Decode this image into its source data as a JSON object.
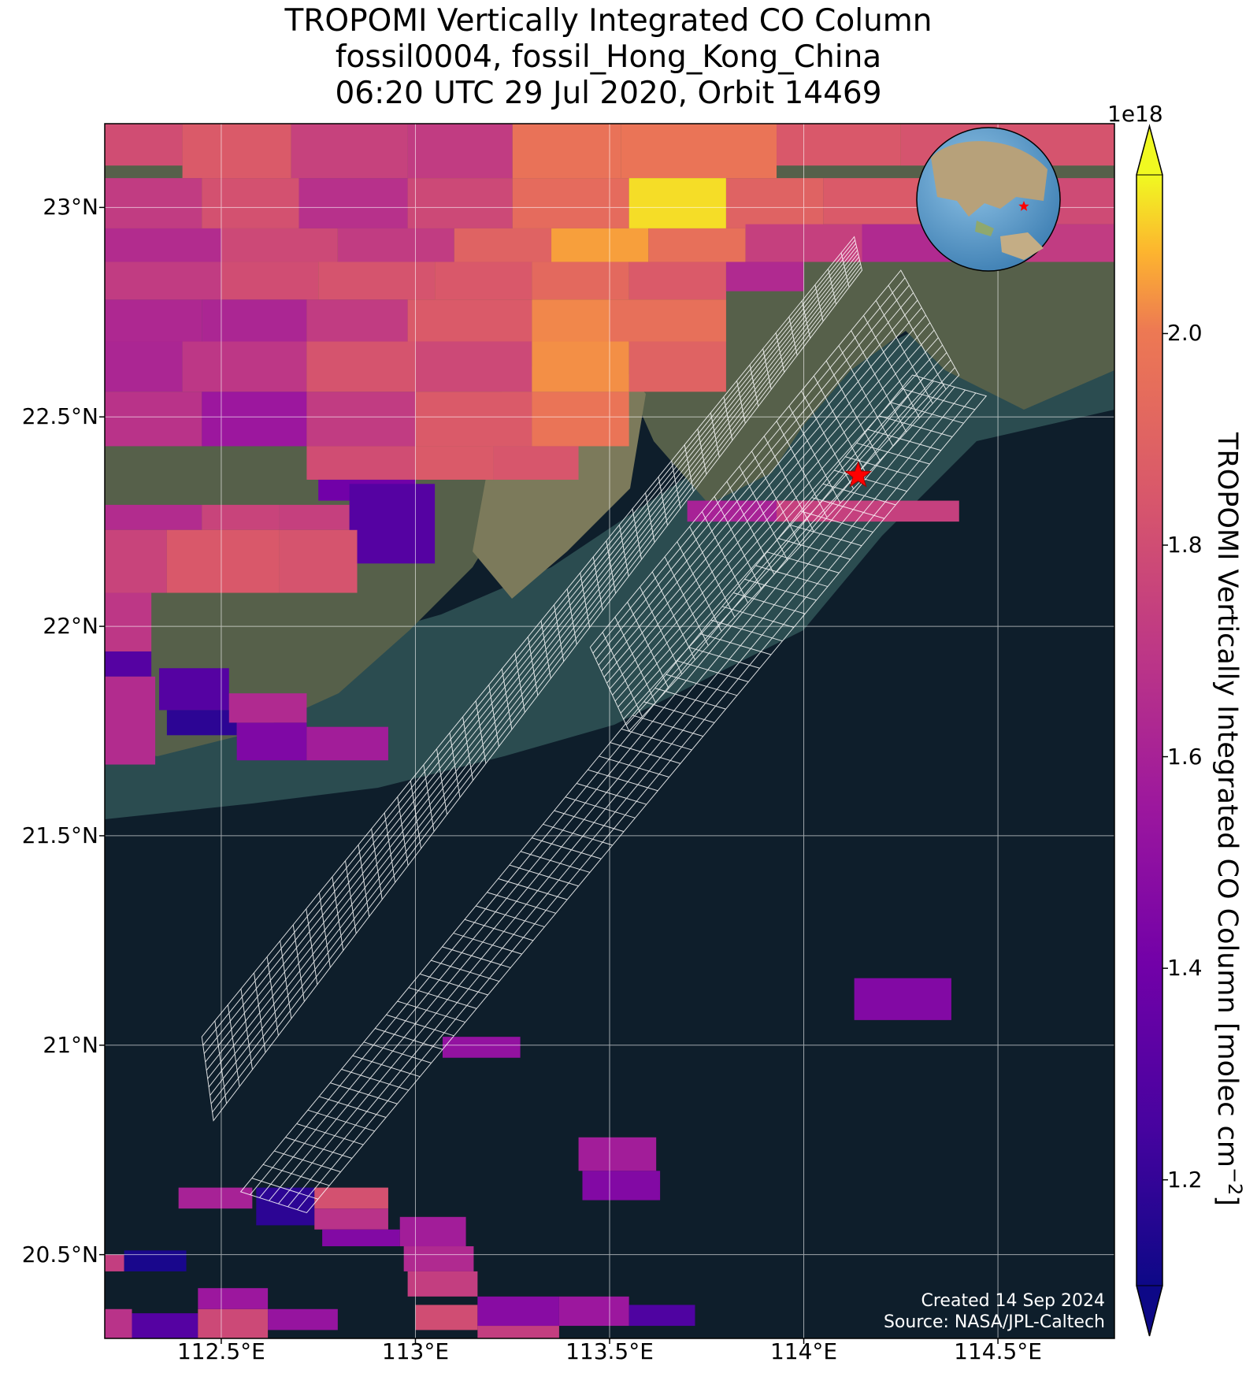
{
  "title": {
    "line1": "TROPOMI Vertically Integrated CO Column",
    "line2": "fossil0004, fossil_Hong_Kong_China",
    "line3": "06:20 UTC 29 Jul 2020, Orbit 14469"
  },
  "axes": {
    "lat_ticks": [
      "23°N",
      "22.5°N",
      "22°N",
      "21.5°N",
      "21°N",
      "20.5°N"
    ],
    "lon_ticks": [
      "112.5°E",
      "113°E",
      "113.5°E",
      "114°E",
      "114.5°E"
    ],
    "lon_range": [
      112.2,
      114.8
    ],
    "lat_range": [
      20.3,
      23.2
    ]
  },
  "colorbar": {
    "exponent": "1e18",
    "ticks": [
      "1.2",
      "1.4",
      "1.6",
      "1.8",
      "2.0"
    ],
    "label": "TROPOMI Vertically Integrated CO Column [molec cm",
    "label_sup": "−2",
    "label_end": "]",
    "range": [
      1.1,
      2.15
    ],
    "colormap": "plasma"
  },
  "site_marker": {
    "lon": 114.14,
    "lat": 22.36,
    "color": "#ff0000",
    "icon": "star-icon"
  },
  "inset": {
    "type": "globe",
    "marker_color": "#ff0000"
  },
  "credits": {
    "created": "Created 14 Sep 2024",
    "source": "Source: NASA/JPL-Caltech"
  },
  "chart_data": {
    "type": "heatmap",
    "x_unit": "degrees East",
    "y_unit": "degrees North",
    "cells": [
      {
        "lon": [
          112.2,
          112.4
        ],
        "lat": [
          23.1,
          23.2
        ],
        "v": 1.8
      },
      {
        "lon": [
          112.4,
          112.68
        ],
        "lat": [
          23.07,
          23.2
        ],
        "v": 1.86
      },
      {
        "lon": [
          112.68,
          112.98
        ],
        "lat": [
          23.07,
          23.2
        ],
        "v": 1.75
      },
      {
        "lon": [
          112.98,
          113.25
        ],
        "lat": [
          23.07,
          23.2
        ],
        "v": 1.72
      },
      {
        "lon": [
          113.25,
          113.53
        ],
        "lat": [
          23.07,
          23.2
        ],
        "v": 1.97
      },
      {
        "lon": [
          113.53,
          113.93
        ],
        "lat": [
          23.07,
          23.2
        ],
        "v": 1.98
      },
      {
        "lon": [
          113.93,
          114.25
        ],
        "lat": [
          23.1,
          23.2
        ],
        "v": 1.85
      },
      {
        "lon": [
          114.25,
          114.8
        ],
        "lat": [
          23.1,
          23.2
        ],
        "v": 1.83
      },
      {
        "lon": [
          112.2,
          112.45
        ],
        "lat": [
          22.95,
          23.07
        ],
        "v": 1.72
      },
      {
        "lon": [
          112.45,
          112.7
        ],
        "lat": [
          22.95,
          23.07
        ],
        "v": 1.82
      },
      {
        "lon": [
          112.7,
          112.98
        ],
        "lat": [
          22.95,
          23.07
        ],
        "v": 1.67
      },
      {
        "lon": [
          112.98,
          113.25
        ],
        "lat": [
          22.95,
          23.07
        ],
        "v": 1.78
      },
      {
        "lon": [
          113.25,
          113.55
        ],
        "lat": [
          22.95,
          23.07
        ],
        "v": 1.94
      },
      {
        "lon": [
          113.55,
          113.8
        ],
        "lat": [
          22.95,
          23.07
        ],
        "v": 2.12
      },
      {
        "lon": [
          113.8,
          114.05
        ],
        "lat": [
          22.95,
          23.07
        ],
        "v": 1.9
      },
      {
        "lon": [
          114.05,
          114.35
        ],
        "lat": [
          22.96,
          23.07
        ],
        "v": 1.86
      },
      {
        "lon": [
          114.35,
          114.8
        ],
        "lat": [
          22.96,
          23.07
        ],
        "v": 1.79
      },
      {
        "lon": [
          112.2,
          112.5
        ],
        "lat": [
          22.87,
          22.95
        ],
        "v": 1.65
      },
      {
        "lon": [
          112.5,
          112.8
        ],
        "lat": [
          22.87,
          22.95
        ],
        "v": 1.78
      },
      {
        "lon": [
          112.8,
          113.1
        ],
        "lat": [
          22.87,
          22.95
        ],
        "v": 1.72
      },
      {
        "lon": [
          113.1,
          113.35
        ],
        "lat": [
          22.87,
          22.95
        ],
        "v": 1.9
      },
      {
        "lon": [
          113.35,
          113.6
        ],
        "lat": [
          22.87,
          22.95
        ],
        "v": 2.05
      },
      {
        "lon": [
          113.6,
          113.85
        ],
        "lat": [
          22.87,
          22.95
        ],
        "v": 1.96
      },
      {
        "lon": [
          113.85,
          114.15
        ],
        "lat": [
          22.87,
          22.96
        ],
        "v": 1.74
      },
      {
        "lon": [
          114.15,
          114.5
        ],
        "lat": [
          22.87,
          22.96
        ],
        "v": 1.64
      },
      {
        "lon": [
          114.5,
          114.8
        ],
        "lat": [
          22.87,
          22.96
        ],
        "v": 1.72
      },
      {
        "lon": [
          112.2,
          112.5
        ],
        "lat": [
          22.78,
          22.87
        ],
        "v": 1.72
      },
      {
        "lon": [
          112.5,
          112.75
        ],
        "lat": [
          22.78,
          22.87
        ],
        "v": 1.8
      },
      {
        "lon": [
          112.75,
          113.05
        ],
        "lat": [
          22.78,
          22.87
        ],
        "v": 1.83
      },
      {
        "lon": [
          113.05,
          113.3
        ],
        "lat": [
          22.78,
          22.87
        ],
        "v": 1.85
      },
      {
        "lon": [
          113.3,
          113.55
        ],
        "lat": [
          22.78,
          22.87
        ],
        "v": 1.93
      },
      {
        "lon": [
          113.55,
          113.8
        ],
        "lat": [
          22.78,
          22.87
        ],
        "v": 1.86
      },
      {
        "lon": [
          113.8,
          114.0
        ],
        "lat": [
          22.8,
          22.87
        ],
        "v": 1.64
      },
      {
        "lon": [
          112.2,
          112.45
        ],
        "lat": [
          22.68,
          22.78
        ],
        "v": 1.63
      },
      {
        "lon": [
          112.45,
          112.72
        ],
        "lat": [
          22.68,
          22.78
        ],
        "v": 1.62
      },
      {
        "lon": [
          112.72,
          112.98
        ],
        "lat": [
          22.68,
          22.78
        ],
        "v": 1.72
      },
      {
        "lon": [
          112.98,
          113.3
        ],
        "lat": [
          22.68,
          22.78
        ],
        "v": 1.86
      },
      {
        "lon": [
          113.3,
          113.5
        ],
        "lat": [
          22.68,
          22.78
        ],
        "v": 2.02
      },
      {
        "lon": [
          113.5,
          113.8
        ],
        "lat": [
          22.68,
          22.78
        ],
        "v": 1.96
      },
      {
        "lon": [
          112.2,
          112.4
        ],
        "lat": [
          22.56,
          22.68
        ],
        "v": 1.62
      },
      {
        "lon": [
          112.4,
          112.72
        ],
        "lat": [
          22.56,
          22.68
        ],
        "v": 1.7
      },
      {
        "lon": [
          112.72,
          113.0
        ],
        "lat": [
          22.56,
          22.68
        ],
        "v": 1.83
      },
      {
        "lon": [
          113.0,
          113.3
        ],
        "lat": [
          22.56,
          22.68
        ],
        "v": 1.78
      },
      {
        "lon": [
          113.3,
          113.55
        ],
        "lat": [
          22.56,
          22.68
        ],
        "v": 2.03
      },
      {
        "lon": [
          113.55,
          113.8
        ],
        "lat": [
          22.56,
          22.68
        ],
        "v": 1.9
      },
      {
        "lon": [
          112.2,
          112.45
        ],
        "lat": [
          22.43,
          22.56
        ],
        "v": 1.68
      },
      {
        "lon": [
          112.45,
          112.72
        ],
        "lat": [
          22.43,
          22.56
        ],
        "v": 1.55
      },
      {
        "lon": [
          112.72,
          113.0
        ],
        "lat": [
          22.43,
          22.56
        ],
        "v": 1.72
      },
      {
        "lon": [
          113.0,
          113.3
        ],
        "lat": [
          22.43,
          22.56
        ],
        "v": 1.86
      },
      {
        "lon": [
          113.3,
          113.55
        ],
        "lat": [
          22.43,
          22.56
        ],
        "v": 1.98
      },
      {
        "lon": [
          112.72,
          113.0
        ],
        "lat": [
          22.35,
          22.43
        ],
        "v": 1.8
      },
      {
        "lon": [
          113.0,
          113.2
        ],
        "lat": [
          22.35,
          22.43
        ],
        "v": 1.86
      },
      {
        "lon": [
          113.2,
          113.42
        ],
        "lat": [
          22.35,
          22.43
        ],
        "v": 1.84
      },
      {
        "lon": [
          112.75,
          113.0
        ],
        "lat": [
          22.3,
          22.35
        ],
        "v": 1.4
      },
      {
        "lon": [
          112.2,
          112.45
        ],
        "lat": [
          22.23,
          22.29
        ],
        "v": 1.65
      },
      {
        "lon": [
          112.45,
          112.65
        ],
        "lat": [
          22.23,
          22.29
        ],
        "v": 1.76
      },
      {
        "lon": [
          112.65,
          112.83
        ],
        "lat": [
          22.23,
          22.29
        ],
        "v": 1.74
      },
      {
        "lon": [
          112.83,
          113.05
        ],
        "lat": [
          22.15,
          22.34
        ],
        "v": 1.3
      },
      {
        "lon": [
          112.2,
          112.36
        ],
        "lat": [
          22.08,
          22.23
        ],
        "v": 1.76
      },
      {
        "lon": [
          112.36,
          112.65
        ],
        "lat": [
          22.08,
          22.23
        ],
        "v": 1.85
      },
      {
        "lon": [
          112.65,
          112.85
        ],
        "lat": [
          22.08,
          22.23
        ],
        "v": 1.83
      },
      {
        "lon": [
          112.2,
          112.32
        ],
        "lat": [
          21.94,
          22.08
        ],
        "v": 1.7
      },
      {
        "lon": [
          112.2,
          112.32
        ],
        "lat": [
          21.88,
          21.94
        ],
        "v": 1.3
      },
      {
        "lon": [
          112.2,
          112.33
        ],
        "lat": [
          21.67,
          21.88
        ],
        "v": 1.65
      },
      {
        "lon": [
          112.34,
          112.52
        ],
        "lat": [
          21.8,
          21.9
        ],
        "v": 1.3
      },
      {
        "lon": [
          112.36,
          112.54
        ],
        "lat": [
          21.74,
          21.8
        ],
        "v": 1.18
      },
      {
        "lon": [
          112.52,
          112.72
        ],
        "lat": [
          21.77,
          21.84
        ],
        "v": 1.64
      },
      {
        "lon": [
          112.54,
          112.72
        ],
        "lat": [
          21.68,
          21.77
        ],
        "v": 1.45
      },
      {
        "lon": [
          112.72,
          112.93
        ],
        "lat": [
          21.68,
          21.76
        ],
        "v": 1.58
      },
      {
        "lon": [
          113.7,
          113.93
        ],
        "lat": [
          22.25,
          22.3
        ],
        "v": 1.6
      },
      {
        "lon": [
          113.93,
          114.4
        ],
        "lat": [
          22.25,
          22.3
        ],
        "v": 1.74
      },
      {
        "lon": [
          114.13,
          114.38
        ],
        "lat": [
          21.06,
          21.16
        ],
        "v": 1.46
      },
      {
        "lon": [
          113.07,
          113.27
        ],
        "lat": [
          20.97,
          21.02
        ],
        "v": 1.52
      },
      {
        "lon": [
          113.42,
          113.62
        ],
        "lat": [
          20.7,
          20.78
        ],
        "v": 1.58
      },
      {
        "lon": [
          113.43,
          113.63
        ],
        "lat": [
          20.63,
          20.7
        ],
        "v": 1.46
      },
      {
        "lon": [
          112.39,
          112.58
        ],
        "lat": [
          20.61,
          20.66
        ],
        "v": 1.6
      },
      {
        "lon": [
          112.59,
          112.74
        ],
        "lat": [
          20.57,
          20.66
        ],
        "v": 1.18
      },
      {
        "lon": [
          112.74,
          112.93
        ],
        "lat": [
          20.61,
          20.66
        ],
        "v": 1.82
      },
      {
        "lon": [
          112.74,
          112.93
        ],
        "lat": [
          20.56,
          20.61
        ],
        "v": 1.68
      },
      {
        "lon": [
          112.76,
          112.96
        ],
        "lat": [
          20.52,
          20.56
        ],
        "v": 1.46
      },
      {
        "lon": [
          112.96,
          113.13
        ],
        "lat": [
          20.52,
          20.59
        ],
        "v": 1.58
      },
      {
        "lon": [
          112.97,
          113.15
        ],
        "lat": [
          20.46,
          20.52
        ],
        "v": 1.64
      },
      {
        "lon": [
          112.98,
          113.16
        ],
        "lat": [
          20.4,
          20.46
        ],
        "v": 1.73
      },
      {
        "lon": [
          112.2,
          112.25
        ],
        "lat": [
          20.46,
          20.5
        ],
        "v": 1.73
      },
      {
        "lon": [
          112.25,
          112.41
        ],
        "lat": [
          20.46,
          20.51
        ],
        "v": 1.13
      },
      {
        "lon": [
          112.2,
          112.27
        ],
        "lat": [
          20.3,
          20.37
        ],
        "v": 1.68
      },
      {
        "lon": [
          112.27,
          112.44
        ],
        "lat": [
          20.3,
          20.36
        ],
        "v": 1.3
      },
      {
        "lon": [
          112.44,
          112.62
        ],
        "lat": [
          20.3,
          20.37
        ],
        "v": 1.78
      },
      {
        "lon": [
          112.44,
          112.62
        ],
        "lat": [
          20.37,
          20.42
        ],
        "v": 1.55
      },
      {
        "lon": [
          112.62,
          112.8
        ],
        "lat": [
          20.32,
          20.37
        ],
        "v": 1.53
      },
      {
        "lon": [
          113.0,
          113.16
        ],
        "lat": [
          20.32,
          20.38
        ],
        "v": 1.8
      },
      {
        "lon": [
          113.16,
          113.37
        ],
        "lat": [
          20.33,
          20.4
        ],
        "v": 1.48
      },
      {
        "lon": [
          113.37,
          113.55
        ],
        "lat": [
          20.33,
          20.4
        ],
        "v": 1.55
      },
      {
        "lon": [
          113.55,
          113.72
        ],
        "lat": [
          20.33,
          20.38
        ],
        "v": 1.28
      },
      {
        "lon": [
          113.16,
          113.37
        ],
        "lat": [
          20.3,
          20.33
        ],
        "v": 1.73
      }
    ],
    "swaths": [
      {
        "corners": [
          [
            112.45,
            21.02
          ],
          [
            114.13,
            22.93
          ],
          [
            114.15,
            22.85
          ],
          [
            112.48,
            20.82
          ]
        ],
        "rows": 50,
        "cols": 10
      },
      {
        "corners": [
          [
            112.72,
            20.6
          ],
          [
            114.47,
            22.55
          ],
          [
            114.28,
            22.6
          ],
          [
            112.55,
            20.65
          ]
        ],
        "rows": 60,
        "cols": 7
      },
      {
        "corners": [
          [
            113.45,
            21.95
          ],
          [
            114.25,
            22.85
          ],
          [
            114.4,
            22.6
          ],
          [
            113.55,
            21.75
          ]
        ],
        "rows": 25,
        "cols": 14
      }
    ]
  }
}
